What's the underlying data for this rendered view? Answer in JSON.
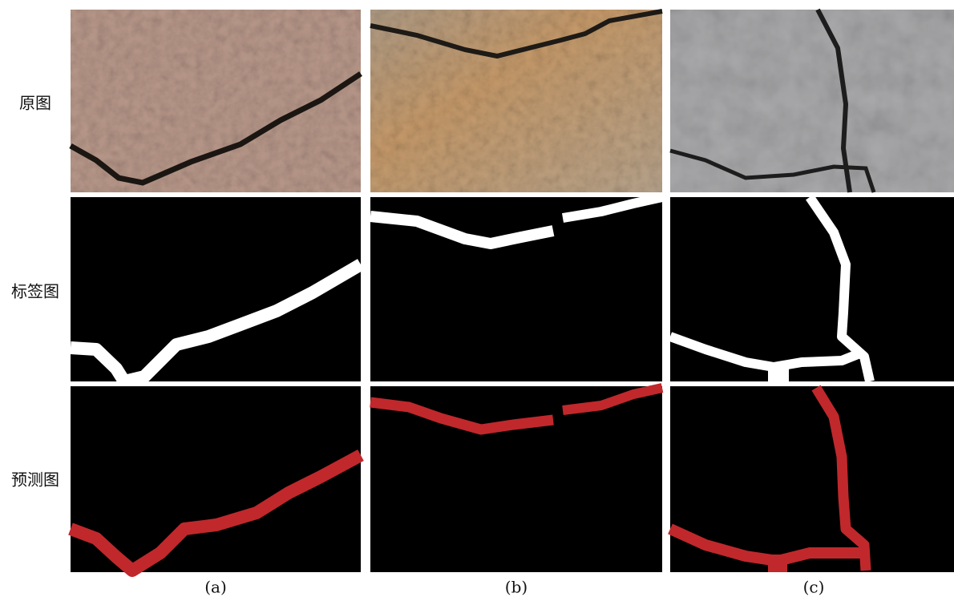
{
  "row_labels": [
    "原图",
    "标签图",
    "预测图"
  ],
  "column_labels": [
    "(a)",
    "(b)",
    "(c)"
  ]
}
